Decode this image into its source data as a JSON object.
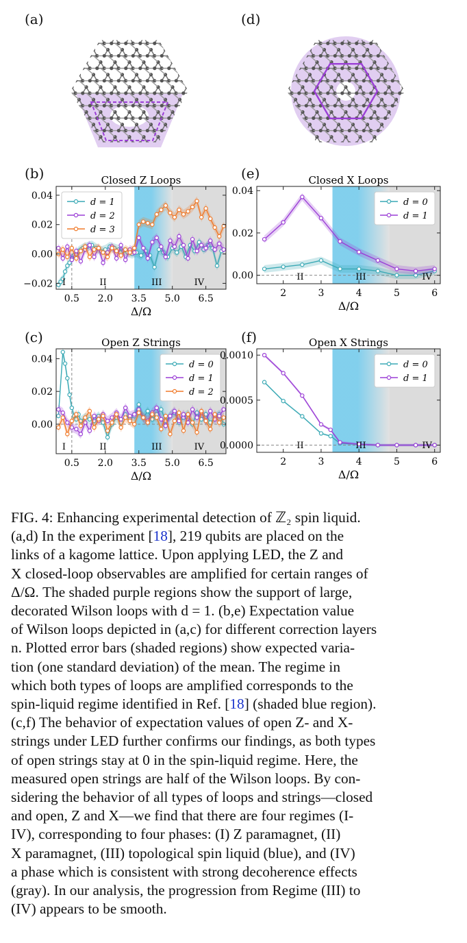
{
  "panels": {
    "a": {
      "label": "(a)"
    },
    "d": {
      "label": "(d)"
    },
    "b": {
      "label": "(b)"
    },
    "e": {
      "label": "(e)"
    },
    "c": {
      "label": "(c)"
    },
    "f": {
      "label": "(f)"
    }
  },
  "colors": {
    "teal": "#3aa9b5",
    "purple": "#9b3fd6",
    "orange": "#f07a2a",
    "blue_region": "#6cc7ea",
    "gray_region": "#dcdcdc",
    "lattice": "#7a7a7a",
    "loop_fill": "#c9a6e6"
  },
  "regimes": [
    "I",
    "II",
    "III",
    "IV"
  ],
  "chart_data": [
    {
      "id": "b",
      "type": "line",
      "title": "Closed Z Loops",
      "xlabel": "Δ/Ω",
      "ylabel": "",
      "xticks": [
        "0.5",
        "2.0",
        "3.5",
        "5.0",
        "6.5"
      ],
      "xtick_values": [
        0.5,
        2.0,
        3.5,
        5.0,
        6.5
      ],
      "yticks": [
        "0.04",
        "0.02",
        "0.00",
        "−0.02"
      ],
      "ytick_values": [
        0.04,
        0.02,
        0.0,
        -0.02
      ],
      "xlim": [
        -0.2,
        7.4
      ],
      "ylim": [
        -0.024,
        0.046
      ],
      "dashed_x": 0.5,
      "regions": {
        "blue": [
          3.3,
          4.5,
          5.0
        ],
        "gray": [
          4.5,
          7.4
        ]
      },
      "regime_labels": [
        {
          "t": "I",
          "x": 0.15
        },
        {
          "t": "II",
          "x": 1.9
        },
        {
          "t": "III",
          "x": 4.3
        },
        {
          "t": "IV",
          "x": 6.2
        }
      ],
      "legend": "top-left",
      "series": [
        {
          "name": "d = 1",
          "color": "teal",
          "x": [
            -0.1,
            0.0,
            0.1,
            0.2,
            0.3,
            0.4,
            0.5,
            0.6,
            0.7,
            0.8,
            0.9,
            1.0,
            1.2,
            1.4,
            1.6,
            1.8,
            2.0,
            2.2,
            2.4,
            2.6,
            2.8,
            3.0,
            3.2,
            3.4,
            3.6,
            3.8,
            4.0,
            4.2,
            4.4,
            4.6,
            4.8,
            5.0,
            5.2,
            5.4,
            5.6,
            5.8,
            6.0,
            6.2,
            6.4,
            6.6,
            6.8,
            7.0,
            7.2
          ],
          "y": [
            -0.021,
            -0.019,
            -0.017,
            -0.012,
            -0.008,
            -0.006,
            -0.003,
            -0.001,
            0.0,
            0.002,
            0.003,
            0.004,
            0.005,
            0.006,
            0.004,
            0.002,
            0.003,
            0.005,
            0.004,
            0.003,
            0.002,
            0.001,
            0.0,
            0.001,
            -0.001,
            0.002,
            -0.001,
            -0.009,
            0.003,
            0.001,
            -0.002,
            0.004,
            0.001,
            0.005,
            -0.002,
            0.006,
            0.002,
            0.008,
            0.003,
            0.006,
            0.004,
            -0.008,
            0.002
          ]
        },
        {
          "name": "d = 2",
          "color": "purple",
          "x": [
            -0.1,
            0.1,
            0.3,
            0.5,
            0.7,
            0.9,
            1.1,
            1.3,
            1.5,
            1.7,
            1.9,
            2.1,
            2.3,
            2.5,
            2.7,
            2.9,
            3.1,
            3.3,
            3.5,
            3.7,
            3.9,
            4.1,
            4.3,
            4.5,
            4.7,
            4.9,
            5.1,
            5.3,
            5.5,
            5.7,
            5.9,
            6.1,
            6.3,
            6.5,
            6.7,
            6.9,
            7.1,
            7.3
          ],
          "y": [
            0.004,
            -0.003,
            0.005,
            -0.004,
            0.002,
            -0.005,
            0.003,
            0.006,
            -0.002,
            0.004,
            -0.006,
            0.001,
            0.005,
            -0.003,
            0.006,
            -0.004,
            0.003,
            0.001,
            0.011,
            0.004,
            -0.003,
            0.008,
            0.011,
            0.005,
            -0.002,
            0.009,
            0.005,
            0.012,
            0.006,
            -0.003,
            0.01,
            0.002,
            0.006,
            0.004,
            0.009,
            0.003,
            0.007,
            0.003
          ]
        },
        {
          "name": "d = 3",
          "color": "orange",
          "x": [
            -0.1,
            0.1,
            0.3,
            0.5,
            0.7,
            0.9,
            1.1,
            1.3,
            1.5,
            1.7,
            1.9,
            2.1,
            2.3,
            2.5,
            2.7,
            2.9,
            3.1,
            3.3,
            3.5,
            3.7,
            3.9,
            4.1,
            4.3,
            4.5,
            4.7,
            4.9,
            5.1,
            5.3,
            5.5,
            5.7,
            5.9,
            6.1,
            6.3,
            6.5,
            6.7,
            6.9,
            7.1,
            7.3
          ],
          "y": [
            0.0,
            0.003,
            -0.002,
            0.004,
            -0.003,
            0.002,
            0.005,
            -0.002,
            0.003,
            0.004,
            0.001,
            -0.002,
            0.004,
            0.002,
            -0.001,
            0.003,
            0.001,
            0.004,
            0.02,
            0.022,
            0.021,
            0.02,
            0.027,
            0.03,
            0.033,
            0.028,
            0.025,
            0.03,
            0.027,
            0.029,
            0.032,
            0.036,
            0.025,
            0.031,
            0.024,
            0.018,
            0.012,
            0.019
          ]
        }
      ]
    },
    {
      "id": "e",
      "type": "line",
      "title": "Closed X Loops",
      "xlabel": "Δ/Ω",
      "ylabel": "",
      "xticks": [
        "2",
        "3",
        "4",
        "5",
        "6"
      ],
      "xtick_values": [
        2,
        3,
        4,
        5,
        6
      ],
      "yticks": [
        "0.04",
        "0.02",
        "0.00"
      ],
      "ytick_values": [
        0.04,
        0.02,
        0.0
      ],
      "xlim": [
        1.3,
        6.15
      ],
      "ylim": [
        -0.004,
        0.042
      ],
      "dashed_y": 0.0,
      "regions": {
        "blue": [
          3.3,
          4.2,
          4.8
        ],
        "gray": [
          4.2,
          6.15
        ]
      },
      "regime_labels": [
        {
          "t": "II",
          "x": 2.45
        },
        {
          "t": "III",
          "x": 4.05
        },
        {
          "t": "IV",
          "x": 5.8
        }
      ],
      "legend": "top-right",
      "series": [
        {
          "name": "d = 0",
          "color": "teal",
          "x": [
            1.5,
            2.0,
            2.5,
            3.0,
            3.5,
            4.0,
            4.5,
            5.0,
            5.5,
            6.0
          ],
          "y": [
            0.003,
            0.004,
            0.005,
            0.007,
            0.003,
            0.003,
            0.002,
            0.0,
            0.0,
            0.002
          ],
          "err": 0.0018
        },
        {
          "name": "d = 1",
          "color": "purple",
          "x": [
            1.5,
            2.0,
            2.5,
            3.0,
            3.5,
            4.0,
            4.5,
            5.0,
            5.5,
            6.0
          ],
          "y": [
            0.017,
            0.025,
            0.037,
            0.027,
            0.016,
            0.011,
            0.007,
            0.003,
            0.002,
            0.003
          ],
          "err": 0.0018
        }
      ]
    },
    {
      "id": "c",
      "type": "line",
      "title": "Open Z Strings",
      "xlabel": "Δ/Ω",
      "ylabel": "",
      "xticks": [
        "0.5",
        "2.0",
        "3.5",
        "5.0",
        "6.5"
      ],
      "xtick_values": [
        0.5,
        2.0,
        3.5,
        5.0,
        6.5
      ],
      "yticks": [
        "0.04",
        "0.02",
        "0.00"
      ],
      "ytick_values": [
        0.04,
        0.02,
        0.0
      ],
      "xlim": [
        -0.2,
        7.4
      ],
      "ylim": [
        -0.018,
        0.046
      ],
      "dashed_x": 0.5,
      "dashed_y": 0.0,
      "regions": {
        "blue": [
          3.3,
          4.5,
          5.0
        ],
        "gray": [
          4.5,
          7.4
        ]
      },
      "regime_labels": [
        {
          "t": "I",
          "x": 0.15
        },
        {
          "t": "II",
          "x": 1.9
        },
        {
          "t": "III",
          "x": 4.3
        },
        {
          "t": "IV",
          "x": 6.2
        }
      ],
      "legend": "top-right",
      "series": [
        {
          "name": "d = 0",
          "color": "teal",
          "x": [
            -0.1,
            0.1,
            0.2,
            0.3,
            0.4,
            0.5,
            0.6,
            0.7,
            0.8,
            0.9,
            1.1,
            1.3,
            1.5,
            1.7,
            1.9,
            2.1,
            2.3,
            2.5,
            2.7,
            2.9,
            3.1,
            3.3,
            3.5,
            3.7,
            3.9,
            4.1,
            4.3,
            4.5,
            4.7,
            4.9,
            5.1,
            5.3,
            5.5,
            5.7,
            5.9,
            6.1,
            6.3,
            6.5,
            6.7,
            6.9,
            7.1,
            7.3
          ],
          "y": [
            0.005,
            0.044,
            0.037,
            0.028,
            0.018,
            0.01,
            0.005,
            0.003,
            0.006,
            0.002,
            0.004,
            0.003,
            0.002,
            0.005,
            0.001,
            -0.008,
            0.0,
            0.004,
            0.001,
            0.006,
            0.003,
            0.005,
            0.012,
            0.004,
            0.008,
            0.003,
            0.006,
            0.009,
            0.002,
            0.005,
            0.007,
            0.001,
            0.004,
            0.006,
            0.0,
            0.007,
            0.003,
            0.006,
            0.001,
            0.004,
            0.006,
            0.0
          ]
        },
        {
          "name": "d = 1",
          "color": "purple",
          "x": [
            -0.1,
            0.1,
            0.3,
            0.5,
            0.7,
            0.9,
            1.1,
            1.3,
            1.5,
            1.7,
            1.9,
            2.1,
            2.3,
            2.5,
            2.7,
            2.9,
            3.1,
            3.3,
            3.5,
            3.7,
            3.9,
            4.1,
            4.3,
            4.5,
            4.7,
            4.9,
            5.1,
            5.3,
            5.5,
            5.7,
            5.9,
            6.1,
            6.3,
            6.5,
            6.7,
            6.9,
            7.1,
            7.3
          ],
          "y": [
            0.009,
            0.007,
            0.001,
            -0.002,
            -0.003,
            -0.006,
            0.001,
            -0.004,
            0.005,
            0.002,
            0.006,
            0.002,
            0.004,
            0.007,
            0.003,
            0.01,
            0.005,
            0.006,
            0.009,
            0.004,
            0.002,
            0.007,
            0.01,
            0.003,
            -0.001,
            0.005,
            0.008,
            0.002,
            0.006,
            0.001,
            0.009,
            0.004,
            0.007,
            0.002,
            0.008,
            0.003,
            0.005,
            0.009
          ]
        },
        {
          "name": "d = 2",
          "color": "orange",
          "x": [
            -0.1,
            0.1,
            0.3,
            0.5,
            0.7,
            0.9,
            1.1,
            1.3,
            1.5,
            1.7,
            1.9,
            2.1,
            2.3,
            2.5,
            2.7,
            2.9,
            3.1,
            3.3,
            3.5,
            3.7,
            3.9,
            4.1,
            4.3,
            4.5,
            4.7,
            4.9,
            5.1,
            5.3,
            5.5,
            5.7,
            5.9,
            6.1,
            6.3,
            6.5,
            6.7,
            6.9,
            7.1,
            7.3
          ],
          "y": [
            -0.002,
            0.004,
            -0.006,
            0.002,
            0.006,
            -0.001,
            0.004,
            0.008,
            -0.002,
            0.003,
            0.005,
            -0.004,
            0.001,
            0.006,
            -0.002,
            0.004,
            0.002,
            0.0,
            0.007,
            0.004,
            0.001,
            0.006,
            0.004,
            -0.003,
            0.005,
            -0.006,
            0.002,
            0.007,
            -0.004,
            0.006,
            0.001,
            -0.005,
            0.008,
            0.002,
            -0.003,
            0.006,
            0.001,
            0.004
          ]
        }
      ]
    },
    {
      "id": "f",
      "type": "line",
      "title": "Open X Strings",
      "xlabel": "Δ/Ω",
      "ylabel": "",
      "xticks": [
        "2",
        "3",
        "4",
        "5",
        "6"
      ],
      "xtick_values": [
        2,
        3,
        4,
        5,
        6
      ],
      "yticks": [
        "0.0010",
        "0.0005",
        "0.0000"
      ],
      "ytick_values": [
        0.001,
        0.0005,
        0.0
      ],
      "xlim": [
        1.3,
        6.15
      ],
      "ylim": [
        -8e-05,
        0.00107
      ],
      "dashed_y": 0.0,
      "regions": {
        "blue": [
          3.3,
          4.2,
          4.8
        ],
        "gray": [
          4.2,
          6.15
        ]
      },
      "regime_labels": [
        {
          "t": "II",
          "x": 2.45
        },
        {
          "t": "III",
          "x": 4.05
        },
        {
          "t": "IV",
          "x": 5.8
        }
      ],
      "legend": "top-right",
      "series": [
        {
          "name": "d = 0",
          "color": "teal",
          "x": [
            1.5,
            2.0,
            2.5,
            3.0,
            3.25,
            3.5,
            4.0,
            4.5,
            5.0,
            5.5,
            6.0
          ],
          "y": [
            0.0007,
            0.00049,
            0.00032,
            0.00013,
            0.0001,
            2e-05,
            1e-05,
            0.0,
            0.0,
            0.0,
            0.0
          ],
          "err": 1e-05
        },
        {
          "name": "d = 1",
          "color": "purple",
          "x": [
            1.5,
            2.0,
            2.5,
            3.0,
            3.25,
            3.5,
            4.0,
            4.5,
            5.0,
            5.5,
            6.0
          ],
          "y": [
            0.001,
            0.0008,
            0.00055,
            0.00023,
            0.00017,
            3e-05,
            1e-05,
            0.0,
            0.0,
            0.0,
            0.0
          ],
          "err": 1.5e-05
        }
      ]
    }
  ],
  "caption": {
    "lines": [
      [
        "FIG. 4: Enhancing experimental detection of ℤ",
        "₂",
        " spin liquid."
      ],
      [
        "(a,d) In the experiment [",
        "18",
        "], 219 qubits are placed on the"
      ],
      [
        "links of a kagome lattice.  Upon applying LED, the Z and"
      ],
      [
        "X closed-loop observables are amplified for certain ranges of"
      ],
      [
        "Δ/Ω.  The shaded purple regions show the support of large,"
      ],
      [
        "decorated Wilson loops with d = 1.  (b,e) Expectation value"
      ],
      [
        "of Wilson loops depicted in (a,c) for different correction layers"
      ],
      [
        "n.  Plotted error bars (shaded regions) show expected varia-"
      ],
      [
        "tion (one standard deviation) of the mean.  The regime in"
      ],
      [
        "which both types of loops are amplified corresponds to the"
      ],
      [
        "spin-liquid regime identified in Ref. [",
        "18",
        "] (shaded blue region)."
      ],
      [
        "(c,f) The behavior of expectation values of open Z- and X-"
      ],
      [
        "strings under LED further confirms our findings, as both types"
      ],
      [
        "of open strings stay at 0 in the spin-liquid regime.  Here, the"
      ],
      [
        "measured open strings are half of the Wilson loops.  By con-"
      ],
      [
        "sidering the behavior of all types of loops and strings—closed"
      ],
      [
        "and open, Z and X—we find that there are four regimes (I-"
      ],
      [
        "IV), corresponding to four phases:  (I) Z paramagnet, (II)"
      ],
      [
        "X paramagnet, (III) topological spin liquid (blue), and (IV)"
      ],
      [
        "a phase which is consistent with strong decoherence effects"
      ],
      [
        "(gray).  In our analysis, the progression from Regime (III) to"
      ],
      [
        "(IV) appears to be smooth."
      ]
    ]
  }
}
